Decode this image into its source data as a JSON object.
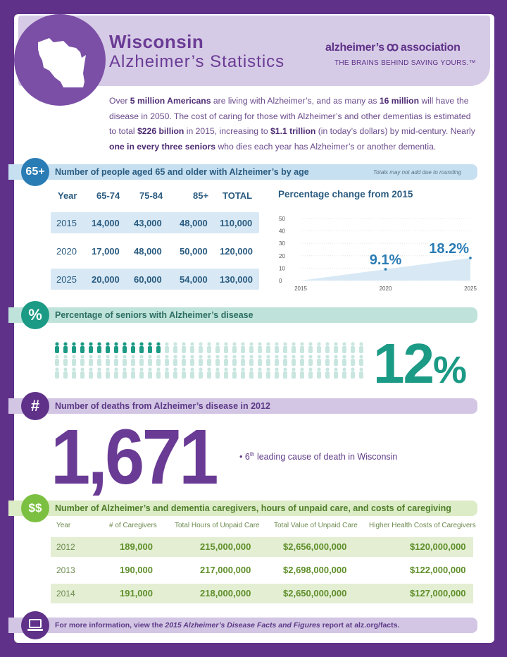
{
  "header": {
    "state": "Wisconsin",
    "subtitle": "Alzheimer’s Statistics",
    "logo_left": "alzheimer’s",
    "logo_right": "association",
    "logo_mark": "ꝏ",
    "tagline": "THE BRAINS BEHIND SAVING YOURS.™"
  },
  "intro": {
    "p1": "Over ",
    "b1": "5 million Americans",
    "p2": " are living with Alzheimer’s, and as many as ",
    "b2": "16 million",
    "p3": " will have the disease in 2050. The cost of caring for those with Alzheimer’s and other dementias is estimated to total ",
    "b3": "$226 billion",
    "p4": " in 2015, increasing to ",
    "b4": "$1.1 trillion",
    "p5": " (in today’s dollars) by mid-century. Nearly ",
    "b5": "one in every three seniors",
    "p6": " who dies each year has Alzheimer’s or another dementia."
  },
  "section1": {
    "badge": "65+",
    "label": "Number of people aged 65 and older with Alzheimer’s by age",
    "note": "Totals may not add due to rounding",
    "headers": [
      "Year",
      "65-74",
      "75-84",
      "85+",
      "TOTAL"
    ],
    "rows": [
      [
        "2015",
        "14,000",
        "43,000",
        "48,000",
        "110,000"
      ],
      [
        "2020",
        "17,000",
        "48,000",
        "50,000",
        "120,000"
      ],
      [
        "2025",
        "20,000",
        "60,000",
        "54,000",
        "130,000"
      ]
    ]
  },
  "chart_data": {
    "type": "area",
    "title": "Percentage change from 2015",
    "x": [
      2015,
      2020,
      2025
    ],
    "values": [
      0,
      9.1,
      18.2
    ],
    "labels": [
      "",
      "9.1%",
      "18.2%"
    ],
    "ylim": [
      0,
      50
    ],
    "yticks": [
      "0",
      "10",
      "20",
      "30",
      "40",
      "50"
    ],
    "xticks": [
      "2015",
      "2020",
      "2025"
    ],
    "fill_color": "#d8e9f5",
    "label_color": "#2a7cb4"
  },
  "section2": {
    "badge": "%",
    "label": "Percentage of seniors with Alzheimer’s disease",
    "value": "12",
    "unit": "%",
    "highlighted_fraction": 0.12,
    "teal": "#1b9a85"
  },
  "section3": {
    "badge": "#",
    "label": "Number of deaths from Alzheimer’s disease in 2012",
    "value": "1,671",
    "rank_num": "6",
    "rank_sup": "th",
    "rank_text": " leading cause of death in Wisconsin"
  },
  "section4": {
    "badge": "$$",
    "label": "Number of Alzheimer’s and dementia caregivers, hours of unpaid care, and costs of caregiving",
    "headers": [
      "Year",
      "# of Caregivers",
      "Total Hours of Unpaid Care",
      "Total Value of Unpaid Care",
      "Higher Health Costs of Caregivers"
    ],
    "rows": [
      [
        "2012",
        "189,000",
        "215,000,000",
        "$2,656,000,000",
        "$120,000,000"
      ],
      [
        "2013",
        "190,000",
        "217,000,000",
        "$2,698,000,000",
        "$122,000,000"
      ],
      [
        "2014",
        "191,000",
        "218,000,000",
        "$2,650,000,000",
        "$127,000,000"
      ]
    ]
  },
  "footer": {
    "t1": "For more information, view the ",
    "t2": "2015 Alzheimer’s Disease Facts and Figures",
    "t3": " report at alz.org/facts."
  },
  "colors": {
    "purple": "#5f3189",
    "blue_badge": "#2a7cb4",
    "teal_badge": "#1b9a85",
    "green_badge": "#7cc042"
  }
}
